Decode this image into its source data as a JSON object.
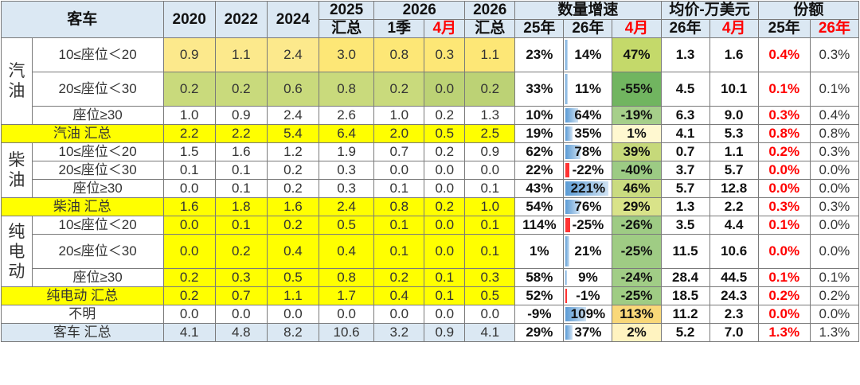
{
  "header": {
    "category": "客车",
    "y2020": "2020",
    "y2022": "2022",
    "y2024": "2024",
    "y2025": "2025",
    "y2025_sub": "汇总",
    "y2026": "2026",
    "y2026_q1": "1季",
    "y2026_apr": "4月",
    "y2026b": "2026",
    "y2026b_sub": "汇总",
    "growth": "数量增速",
    "growth_25": "25年",
    "growth_26": "26年",
    "growth_apr": "4月",
    "price": "均价-万美元",
    "price_26": "26年",
    "price_apr": "4月",
    "share": "份额",
    "share_25": "25年",
    "share_26": "26年"
  },
  "groups": {
    "gasoline": "汽\n油",
    "diesel": "柴\n油",
    "electric": "纯\n电\n动"
  },
  "rows": [
    {
      "label": "10≤座位＜20",
      "v": [
        "0.9",
        "1.1",
        "2.4",
        "3.0",
        "0.8",
        "0.3",
        "1.1"
      ],
      "g": [
        "23%",
        "14%",
        "47%"
      ],
      "p": [
        "1.3",
        "1.6"
      ],
      "s": [
        "0.4%",
        "0.3%"
      ]
    },
    {
      "label": "20≤座位＜30",
      "v": [
        "0.2",
        "0.2",
        "0.6",
        "0.8",
        "0.2",
        "0.0",
        "0.2"
      ],
      "g": [
        "33%",
        "11%",
        "-55%"
      ],
      "p": [
        "4.5",
        "10.1"
      ],
      "s": [
        "0.1%",
        "0.1%"
      ]
    },
    {
      "label": "座位≥30",
      "v": [
        "1.0",
        "0.9",
        "2.4",
        "2.6",
        "1.0",
        "0.2",
        "1.3"
      ],
      "g": [
        "10%",
        "64%",
        "-19%"
      ],
      "p": [
        "6.3",
        "9.0"
      ],
      "s": [
        "0.3%",
        "0.4%"
      ]
    },
    {
      "label": "汽油 汇总",
      "v": [
        "2.2",
        "2.2",
        "5.4",
        "6.4",
        "2.0",
        "0.5",
        "2.5"
      ],
      "g": [
        "19%",
        "35%",
        "1%"
      ],
      "p": [
        "4.1",
        "5.3"
      ],
      "s": [
        "0.8%",
        "0.8%"
      ]
    },
    {
      "label": "10≤座位＜20",
      "v": [
        "1.5",
        "1.6",
        "1.2",
        "1.9",
        "0.7",
        "0.2",
        "0.9"
      ],
      "g": [
        "62%",
        "78%",
        "39%"
      ],
      "p": [
        "0.7",
        "1.1"
      ],
      "s": [
        "0.2%",
        "0.3%"
      ]
    },
    {
      "label": "20≤座位＜30",
      "v": [
        "0.1",
        "0.1",
        "0.2",
        "0.3",
        "0.0",
        "0.0",
        "0.0"
      ],
      "g": [
        "22%",
        "-22%",
        "-40%"
      ],
      "p": [
        "3.7",
        "5.7"
      ],
      "s": [
        "0.0%",
        "0.0%"
      ]
    },
    {
      "label": "座位≥30",
      "v": [
        "0.0",
        "0.1",
        "0.2",
        "0.3",
        "0.1",
        "0.0",
        "0.1"
      ],
      "g": [
        "43%",
        "221%",
        "46%"
      ],
      "p": [
        "5.7",
        "12.8"
      ],
      "s": [
        "0.0%",
        "0.0%"
      ]
    },
    {
      "label": "柴油 汇总",
      "v": [
        "1.6",
        "1.8",
        "1.6",
        "2.4",
        "0.8",
        "0.2",
        "1.0"
      ],
      "g": [
        "54%",
        "76%",
        "29%"
      ],
      "p": [
        "1.3",
        "2.2"
      ],
      "s": [
        "0.3%",
        "0.3%"
      ]
    },
    {
      "label": "10≤座位＜20",
      "v": [
        "0.0",
        "0.1",
        "0.2",
        "0.5",
        "0.1",
        "0.0",
        "0.1"
      ],
      "g": [
        "114%",
        "-25%",
        "-26%"
      ],
      "p": [
        "3.5",
        "4.4"
      ],
      "s": [
        "0.1%",
        "0.0%"
      ]
    },
    {
      "label": "20≤座位＜30",
      "v": [
        "0.0",
        "0.2",
        "0.4",
        "0.4",
        "0.1",
        "0.0",
        "0.1"
      ],
      "g": [
        "1%",
        "21%",
        "-25%"
      ],
      "p": [
        "11.5",
        "10.6"
      ],
      "s": [
        "0.0%",
        "0.0%"
      ]
    },
    {
      "label": "座位≥30",
      "v": [
        "0.2",
        "0.3",
        "0.5",
        "0.8",
        "0.2",
        "0.1",
        "0.3"
      ],
      "g": [
        "58%",
        "9%",
        "-24%"
      ],
      "p": [
        "28.4",
        "44.5"
      ],
      "s": [
        "0.1%",
        "0.1%"
      ]
    },
    {
      "label": "纯电动 汇总",
      "v": [
        "0.2",
        "0.7",
        "1.1",
        "1.7",
        "0.4",
        "0.1",
        "0.5"
      ],
      "g": [
        "52%",
        "-1%",
        "-25%"
      ],
      "p": [
        "18.5",
        "24.3"
      ],
      "s": [
        "0.2%",
        "0.2%"
      ]
    },
    {
      "label": "不明",
      "v": [
        "0.0",
        "0.0",
        "0.0",
        "0.0",
        "0.0",
        "0.0",
        "0.0"
      ],
      "g": [
        "-9%",
        "109%",
        "113%"
      ],
      "p": [
        "11.2",
        "2.3"
      ],
      "s": [
        "0.0%",
        "0.0%"
      ]
    },
    {
      "label": "客车 汇总",
      "v": [
        "4.1",
        "4.8",
        "8.2",
        "10.6",
        "3.2",
        "0.9",
        "4.1"
      ],
      "g": [
        "29%",
        "37%",
        "2%"
      ],
      "p": [
        "5.2",
        "7.0"
      ],
      "s": [
        "1.3%",
        "1.3%"
      ]
    }
  ],
  "growth26_bar_fraction": [
    0.06,
    0.05,
    0.29,
    0.16,
    0.35,
    0.1,
    1.0,
    0.34,
    0.11,
    0.1,
    0.04,
    0.005,
    0.49,
    0.17
  ],
  "colors": {
    "header_bg": "#dbe8f3",
    "yellow": "#ffff00",
    "bar_blue": "#5b9bd5",
    "bar_red": "#ff3333",
    "red_text": "#ff0000"
  }
}
